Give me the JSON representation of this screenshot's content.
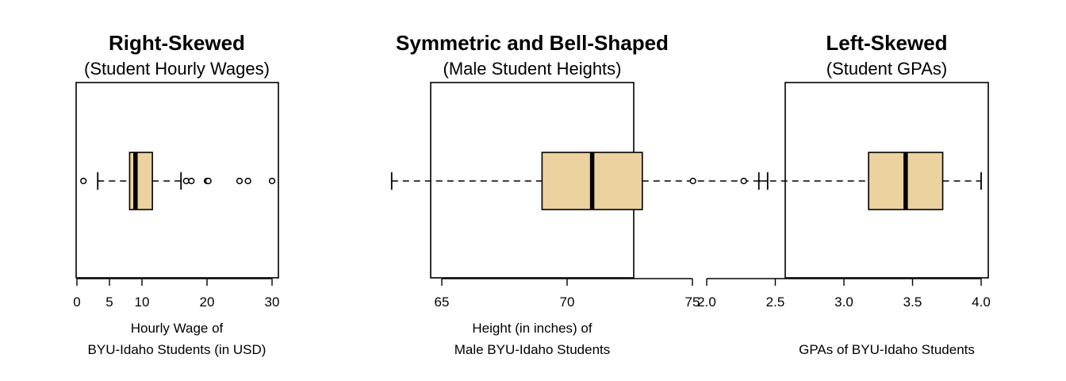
{
  "chart_data": [
    {
      "type": "boxplot",
      "title": "Right-Skewed",
      "subtitle": "(Student Hourly Wages)",
      "xlabel": [
        "Hourly Wage of",
        "BYU-Idaho Students (in USD)"
      ],
      "xlim": [
        0,
        30
      ],
      "ticks": [
        0,
        5,
        10,
        20,
        30
      ],
      "tick_labels": [
        "0",
        "5",
        "10",
        "20",
        "30"
      ],
      "box": {
        "whisker_low": 3.2,
        "q1": 8.1,
        "median": 9.0,
        "q3": 11.6,
        "whisker_high": 16.0
      },
      "outliers": [
        1.0,
        16.8,
        17.6,
        20.0,
        20.2,
        25.0,
        26.3,
        30.0
      ],
      "fill_color": "#ecd29f"
    },
    {
      "type": "boxplot",
      "title": "Symmetric and Bell-Shaped",
      "subtitle": "(Male Student Heights)",
      "xlabel": [
        "Height (in inches) of",
        "Male BYU-Idaho Students"
      ],
      "xlim": [
        65,
        75
      ],
      "ticks": [
        65,
        70,
        75
      ],
      "tick_labels": [
        "65",
        "70",
        "75"
      ],
      "box": {
        "whisker_low": 63.0,
        "q1": 69.0,
        "median": 71.0,
        "q3": 73.0,
        "whisker_high": 78.0
      },
      "outliers": [],
      "fill_color": "#ecd29f"
    },
    {
      "type": "boxplot",
      "title": "Left-Skewed",
      "subtitle": "(Student GPAs)",
      "xlabel": [
        "",
        "GPAs of BYU-Idaho Students"
      ],
      "xlim": [
        2.0,
        4.0
      ],
      "ticks": [
        2.0,
        2.5,
        3.0,
        3.5,
        4.0
      ],
      "tick_labels": [
        "2.0",
        "2.5",
        "3.0",
        "3.5",
        "4.0"
      ],
      "box": {
        "whisker_low": 2.38,
        "q1": 3.18,
        "median": 3.45,
        "q3": 3.72,
        "whisker_high": 4.0
      },
      "outliers": [
        1.9,
        2.27
      ],
      "fill_color": "#ecd29f"
    }
  ]
}
